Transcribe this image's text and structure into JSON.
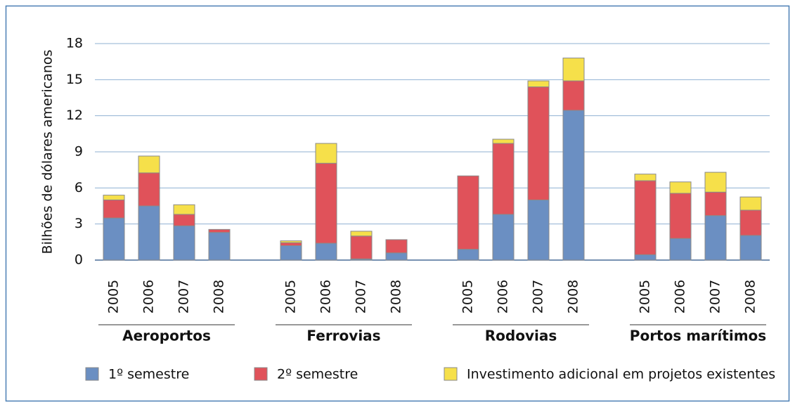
{
  "chart_data": {
    "type": "stacked_bar",
    "y_label": "Bilhões de dólares americanos",
    "categories": [
      "2005",
      "2006",
      "2007",
      "2008",
      "2005",
      "2006",
      "2007",
      "2008",
      "2005",
      "2006",
      "2007",
      "2008",
      "2005",
      "2006",
      "2007",
      "2008"
    ],
    "groups": [
      "Aeroportos",
      "Ferrovias",
      "Rodovias",
      "Portos marítimos"
    ],
    "series": [
      {
        "name": "1º semestre",
        "color": "#6b8fc2",
        "values": [
          3.5,
          4.5,
          2.85,
          2.3,
          1.2,
          1.4,
          0.1,
          0.6,
          0.9,
          3.8,
          5.0,
          12.45,
          0.45,
          1.8,
          3.7,
          2.05
        ]
      },
      {
        "name": "2º semestre",
        "color": "#e0525a",
        "values": [
          1.5,
          2.75,
          0.95,
          0.25,
          0.25,
          6.65,
          1.9,
          1.1,
          6.1,
          5.9,
          9.4,
          2.45,
          6.15,
          3.75,
          1.95,
          2.1
        ]
      },
      {
        "name": "Investimento adicional em projetos existentes",
        "color": "#f6e04a",
        "values": [
          0.4,
          1.4,
          0.8,
          0,
          0.15,
          1.65,
          0.4,
          0,
          0,
          0.35,
          0.5,
          1.9,
          0.55,
          0.95,
          1.65,
          1.1
        ]
      }
    ],
    "ylim": [
      0,
      18
    ],
    "yticks": [
      0,
      3,
      6,
      9,
      12,
      15,
      18
    ],
    "grid": true
  }
}
